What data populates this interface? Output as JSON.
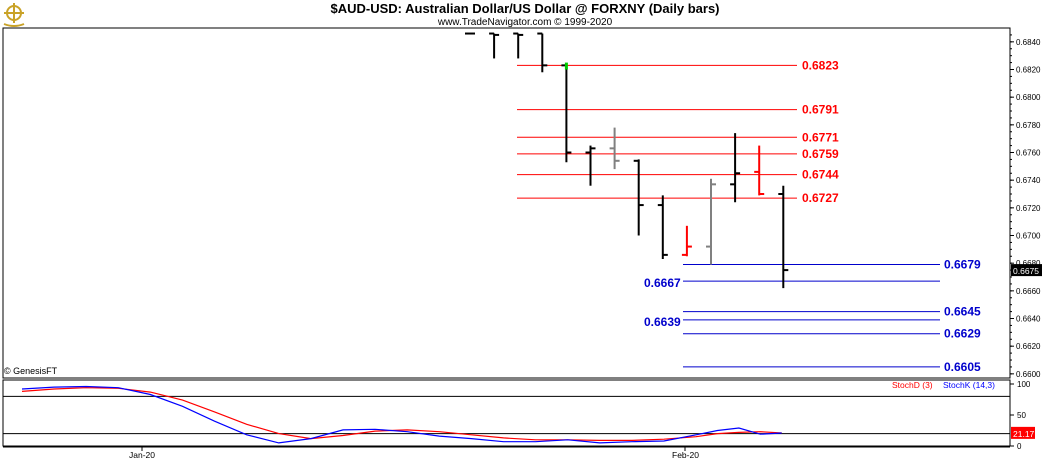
{
  "title": "$AUD-USD:  Australian Dollar/US Dollar @ FORXNY  (Daily bars)",
  "subtitle": "www.TradeNavigator.com © 1999-2020",
  "copyright": "© GenesisFT",
  "colors": {
    "resistance": "#ff0000",
    "support": "#0000cc",
    "bar_default": "#000000",
    "bar_red": "#ff0000",
    "bar_gray": "#808080",
    "bar_green_tick": "#00cc00",
    "stoch_d": "#ff0000",
    "stoch_k": "#0000ff",
    "last_price_box": "#000000",
    "stoch_value_box": "#ff0000"
  },
  "chart_data": [
    {
      "type": "ohlc",
      "title": "$AUD-USD:  Australian Dollar/US Dollar @ FORXNY  (Daily bars)",
      "ylim": [
        0.6597,
        0.685
      ],
      "y_ticks": [
        "0.6840",
        "0.6820",
        "0.6800",
        "0.6780",
        "0.6760",
        "0.6740",
        "0.6720",
        "0.6700",
        "0.6680",
        "0.6660",
        "0.6640",
        "0.6620",
        "0.6600"
      ],
      "x_ticks": [
        "Jan-20",
        "Feb-20"
      ],
      "last_price": "0.6675",
      "bars": [
        {
          "open": 0.6846,
          "high": 0.6846,
          "low": 0.6846,
          "close": 0.6846,
          "color": "black"
        },
        {
          "open": 0.6846,
          "high": 0.6846,
          "low": 0.6828,
          "close": 0.6845,
          "color": "black"
        },
        {
          "open": 0.6846,
          "high": 0.6846,
          "low": 0.6828,
          "close": 0.6845,
          "color": "black"
        },
        {
          "open": 0.6846,
          "high": 0.6846,
          "low": 0.6818,
          "close": 0.6823,
          "color": "black"
        },
        {
          "open": 0.6823,
          "high": 0.6823,
          "low": 0.6753,
          "close": 0.676,
          "color": "black"
        },
        {
          "open": 0.676,
          "high": 0.6765,
          "low": 0.6736,
          "close": 0.6763,
          "color": "black"
        },
        {
          "open": 0.6763,
          "high": 0.6778,
          "low": 0.6748,
          "close": 0.6754,
          "color": "gray"
        },
        {
          "open": 0.6754,
          "high": 0.6755,
          "low": 0.67,
          "close": 0.6722,
          "color": "black"
        },
        {
          "open": 0.6722,
          "high": 0.6729,
          "low": 0.6683,
          "close": 0.6686,
          "color": "black"
        },
        {
          "open": 0.6686,
          "high": 0.6707,
          "low": 0.6685,
          "close": 0.6692,
          "color": "red"
        },
        {
          "open": 0.6692,
          "high": 0.6741,
          "low": 0.6679,
          "close": 0.6737,
          "color": "gray"
        },
        {
          "open": 0.6737,
          "high": 0.6774,
          "low": 0.6724,
          "close": 0.6745,
          "color": "black"
        },
        {
          "open": 0.6746,
          "high": 0.6765,
          "low": 0.6729,
          "close": 0.673,
          "color": "red"
        },
        {
          "open": 0.673,
          "high": 0.6736,
          "low": 0.6662,
          "close": 0.6675,
          "color": "black"
        }
      ],
      "resistance_levels": [
        {
          "value": 0.6823,
          "label": "0.6823"
        },
        {
          "value": 0.6791,
          "label": "0.6791"
        },
        {
          "value": 0.6771,
          "label": "0.6771"
        },
        {
          "value": 0.6759,
          "label": "0.6759"
        },
        {
          "value": 0.6744,
          "label": "0.6744"
        },
        {
          "value": 0.6727,
          "label": "0.6727"
        }
      ],
      "support_levels": [
        {
          "value": 0.6679,
          "label": "0.6679",
          "label_side": "right"
        },
        {
          "value": 0.6667,
          "label": "0.6667",
          "label_side": "left"
        },
        {
          "value": 0.6645,
          "label": "0.6645",
          "label_side": "right"
        },
        {
          "value": 0.6639,
          "label": "0.6639",
          "label_side": "left"
        },
        {
          "value": 0.6629,
          "label": "0.6629",
          "label_side": "right"
        },
        {
          "value": 0.6605,
          "label": "0.6605",
          "label_side": "right"
        }
      ]
    },
    {
      "type": "line",
      "ylim": [
        0,
        100
      ],
      "y_ticks": [
        "100",
        "50",
        "0"
      ],
      "reference_lines": [
        80,
        20
      ],
      "last_value": "21.17",
      "legend": [
        "StochD (3)",
        "StochK (14,3)"
      ],
      "series": [
        {
          "name": "StochD (3)",
          "color": "red",
          "x": [
            0,
            3,
            6,
            9,
            12,
            15,
            18,
            21,
            24,
            27,
            30,
            33,
            36,
            39,
            42,
            45,
            48,
            51,
            54,
            57,
            60,
            63,
            65,
            67,
            69,
            71
          ],
          "values": [
            88,
            92,
            94,
            93,
            87,
            74,
            55,
            35,
            20,
            12,
            17,
            24,
            26,
            23,
            18,
            13,
            10,
            10,
            9,
            9,
            11,
            15,
            20,
            22,
            23,
            21
          ]
        },
        {
          "name": "StochK (14,3)",
          "color": "blue",
          "x": [
            0,
            3,
            6,
            9,
            12,
            15,
            18,
            21,
            24,
            27,
            30,
            33,
            36,
            39,
            42,
            45,
            48,
            51,
            54,
            57,
            60,
            63,
            65,
            67,
            69,
            71
          ],
          "values": [
            92,
            95,
            96,
            94,
            83,
            64,
            40,
            18,
            5,
            12,
            26,
            27,
            23,
            16,
            12,
            7,
            7,
            10,
            5,
            7,
            8,
            18,
            25,
            29,
            19,
            21
          ]
        }
      ]
    }
  ]
}
